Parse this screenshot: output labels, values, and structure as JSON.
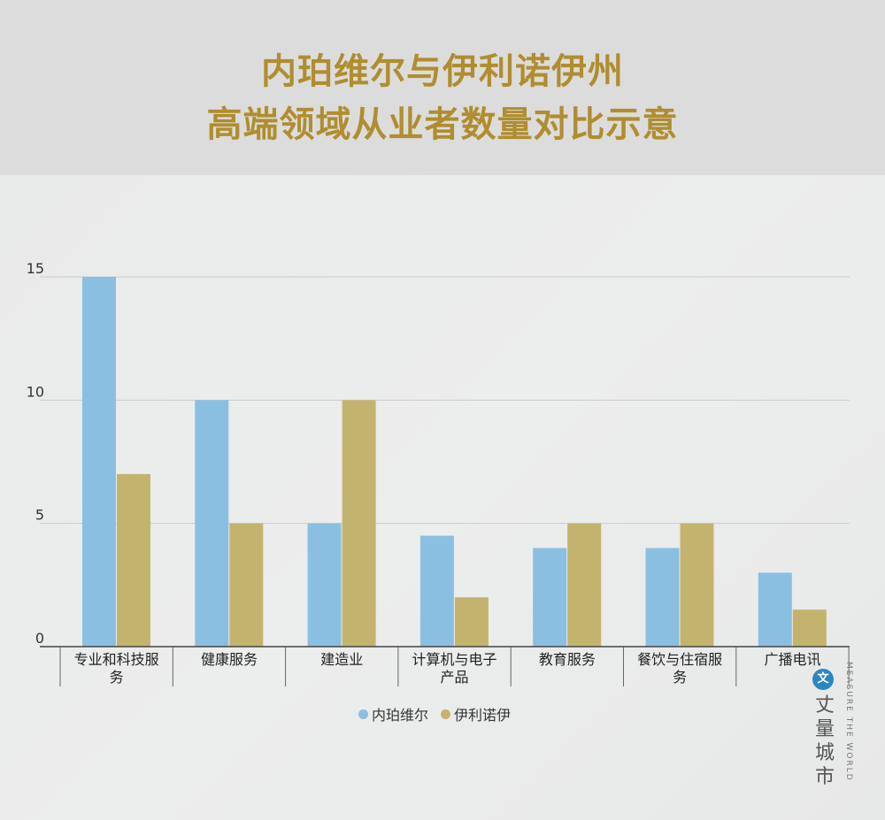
{
  "title_line1": "内珀维尔与伊利诺伊州",
  "title_line2": "高端领域从业者数量对比示意",
  "chart_data": {
    "type": "bar",
    "categories": [
      "专业和科技服务",
      "健康服务",
      "建造业",
      "计算机与电子产品",
      "教育服务",
      "餐饮与住宿服务",
      "广播电讯"
    ],
    "category_lines": [
      [
        "专业和科技服",
        "务"
      ],
      [
        "健康服务"
      ],
      [
        "建造业"
      ],
      [
        "计算机与电子",
        "产品"
      ],
      [
        "教育服务"
      ],
      [
        "餐饮与住宿服",
        "务"
      ],
      [
        "广播电讯"
      ]
    ],
    "series": [
      {
        "name": "内珀维尔",
        "color": "#8bbfe1",
        "values": [
          15,
          10,
          5,
          4.5,
          4,
          4,
          3
        ]
      },
      {
        "name": "伊利诺伊",
        "color": "#c4b36f",
        "values": [
          7,
          5,
          10,
          2,
          5,
          5,
          1.5
        ]
      }
    ],
    "yticks": [
      0,
      5,
      10,
      15
    ],
    "ylim": [
      0,
      15
    ],
    "legend_position": "bottom"
  },
  "watermark": {
    "logo_icon": "文",
    "cn": [
      "丈",
      "量",
      "城",
      "市"
    ],
    "en": "MEASURE THE WORLD"
  }
}
